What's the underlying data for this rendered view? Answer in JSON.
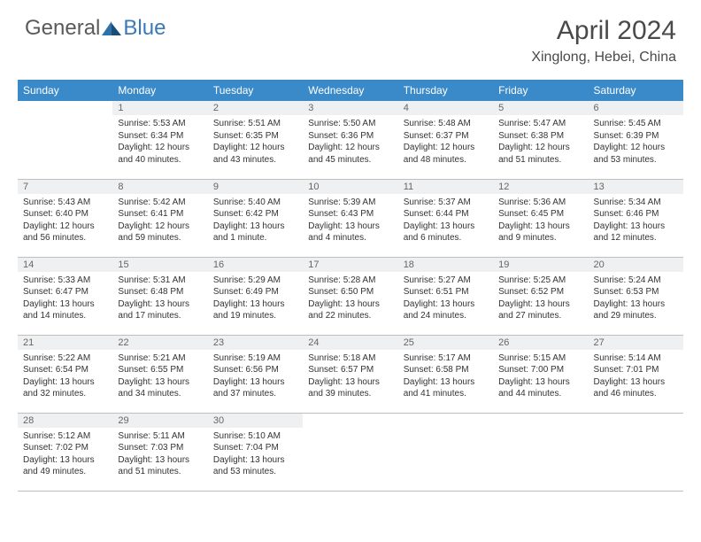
{
  "logo": {
    "word1": "General",
    "word2": "Blue"
  },
  "title": "April 2024",
  "location": "Xinglong, Hebei, China",
  "colors": {
    "header_bg": "#3a8ac9",
    "header_text": "#ffffff",
    "daynum_bg": "#eef0f2",
    "border": "#bfbfbf",
    "logo_gray": "#5a5a5a",
    "logo_blue": "#3a7ab8"
  },
  "fonts": {
    "title_size": 30,
    "location_size": 16,
    "header_cell_size": 12,
    "daynum_size": 11,
    "body_size": 10
  },
  "weekdays": [
    "Sunday",
    "Monday",
    "Tuesday",
    "Wednesday",
    "Thursday",
    "Friday",
    "Saturday"
  ],
  "start_offset": 1,
  "days": [
    {
      "n": 1,
      "sr": "5:53 AM",
      "ss": "6:34 PM",
      "dl": "12 hours and 40 minutes."
    },
    {
      "n": 2,
      "sr": "5:51 AM",
      "ss": "6:35 PM",
      "dl": "12 hours and 43 minutes."
    },
    {
      "n": 3,
      "sr": "5:50 AM",
      "ss": "6:36 PM",
      "dl": "12 hours and 45 minutes."
    },
    {
      "n": 4,
      "sr": "5:48 AM",
      "ss": "6:37 PM",
      "dl": "12 hours and 48 minutes."
    },
    {
      "n": 5,
      "sr": "5:47 AM",
      "ss": "6:38 PM",
      "dl": "12 hours and 51 minutes."
    },
    {
      "n": 6,
      "sr": "5:45 AM",
      "ss": "6:39 PM",
      "dl": "12 hours and 53 minutes."
    },
    {
      "n": 7,
      "sr": "5:43 AM",
      "ss": "6:40 PM",
      "dl": "12 hours and 56 minutes."
    },
    {
      "n": 8,
      "sr": "5:42 AM",
      "ss": "6:41 PM",
      "dl": "12 hours and 59 minutes."
    },
    {
      "n": 9,
      "sr": "5:40 AM",
      "ss": "6:42 PM",
      "dl": "13 hours and 1 minute."
    },
    {
      "n": 10,
      "sr": "5:39 AM",
      "ss": "6:43 PM",
      "dl": "13 hours and 4 minutes."
    },
    {
      "n": 11,
      "sr": "5:37 AM",
      "ss": "6:44 PM",
      "dl": "13 hours and 6 minutes."
    },
    {
      "n": 12,
      "sr": "5:36 AM",
      "ss": "6:45 PM",
      "dl": "13 hours and 9 minutes."
    },
    {
      "n": 13,
      "sr": "5:34 AM",
      "ss": "6:46 PM",
      "dl": "13 hours and 12 minutes."
    },
    {
      "n": 14,
      "sr": "5:33 AM",
      "ss": "6:47 PM",
      "dl": "13 hours and 14 minutes."
    },
    {
      "n": 15,
      "sr": "5:31 AM",
      "ss": "6:48 PM",
      "dl": "13 hours and 17 minutes."
    },
    {
      "n": 16,
      "sr": "5:29 AM",
      "ss": "6:49 PM",
      "dl": "13 hours and 19 minutes."
    },
    {
      "n": 17,
      "sr": "5:28 AM",
      "ss": "6:50 PM",
      "dl": "13 hours and 22 minutes."
    },
    {
      "n": 18,
      "sr": "5:27 AM",
      "ss": "6:51 PM",
      "dl": "13 hours and 24 minutes."
    },
    {
      "n": 19,
      "sr": "5:25 AM",
      "ss": "6:52 PM",
      "dl": "13 hours and 27 minutes."
    },
    {
      "n": 20,
      "sr": "5:24 AM",
      "ss": "6:53 PM",
      "dl": "13 hours and 29 minutes."
    },
    {
      "n": 21,
      "sr": "5:22 AM",
      "ss": "6:54 PM",
      "dl": "13 hours and 32 minutes."
    },
    {
      "n": 22,
      "sr": "5:21 AM",
      "ss": "6:55 PM",
      "dl": "13 hours and 34 minutes."
    },
    {
      "n": 23,
      "sr": "5:19 AM",
      "ss": "6:56 PM",
      "dl": "13 hours and 37 minutes."
    },
    {
      "n": 24,
      "sr": "5:18 AM",
      "ss": "6:57 PM",
      "dl": "13 hours and 39 minutes."
    },
    {
      "n": 25,
      "sr": "5:17 AM",
      "ss": "6:58 PM",
      "dl": "13 hours and 41 minutes."
    },
    {
      "n": 26,
      "sr": "5:15 AM",
      "ss": "7:00 PM",
      "dl": "13 hours and 44 minutes."
    },
    {
      "n": 27,
      "sr": "5:14 AM",
      "ss": "7:01 PM",
      "dl": "13 hours and 46 minutes."
    },
    {
      "n": 28,
      "sr": "5:12 AM",
      "ss": "7:02 PM",
      "dl": "13 hours and 49 minutes."
    },
    {
      "n": 29,
      "sr": "5:11 AM",
      "ss": "7:03 PM",
      "dl": "13 hours and 51 minutes."
    },
    {
      "n": 30,
      "sr": "5:10 AM",
      "ss": "7:04 PM",
      "dl": "13 hours and 53 minutes."
    }
  ],
  "labels": {
    "sunrise": "Sunrise:",
    "sunset": "Sunset:",
    "daylight": "Daylight:"
  }
}
